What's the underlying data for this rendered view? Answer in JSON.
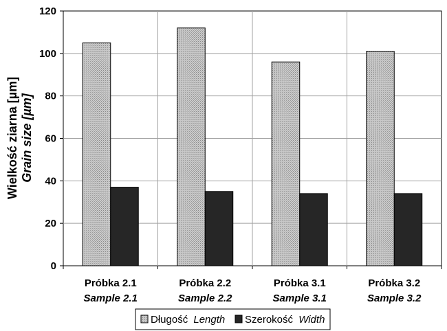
{
  "chart_data": {
    "type": "bar",
    "categories": [
      "Próbka 2.1",
      "Próbka 2.2",
      "Próbka 3.1",
      "Próbka 3.2"
    ],
    "categories_en": [
      "Sample 2.1",
      "Sample 2.2",
      "Sample 3.1",
      "Sample 3.2"
    ],
    "series": [
      {
        "name": "Długość",
        "name_en": "Length",
        "values": [
          105,
          112,
          96,
          101
        ],
        "color": "#bdbdbd",
        "pattern": "dotted-gray"
      },
      {
        "name": "Szerokość",
        "name_en": "Width",
        "values": [
          37,
          35,
          34,
          34
        ],
        "color": "#262626"
      }
    ],
    "ylabel": "Wielkość ziarna [µm]",
    "ylabel_en": "Grain size [µm]",
    "ylim": [
      0,
      120
    ],
    "yticks": [
      0,
      20,
      40,
      60,
      80,
      100,
      120
    ],
    "grid": true,
    "legend": "bottom"
  }
}
